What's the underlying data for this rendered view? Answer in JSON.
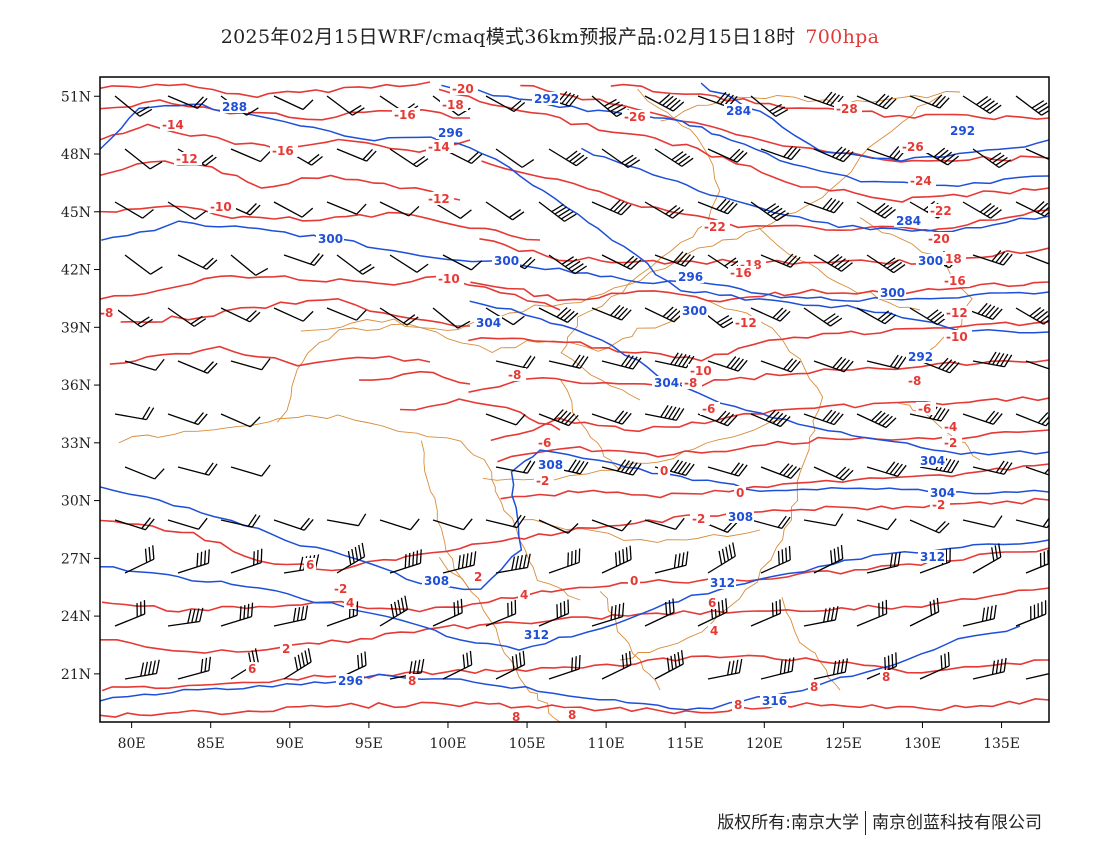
{
  "title": {
    "main": "2025年02月15日WRF/cmaq模式36km预报产品:02月15日18时",
    "level": "700hpa"
  },
  "colors": {
    "temperature": "#e53935",
    "geopotential": "#1e4fd8",
    "border": "#d98c3a",
    "wind": "#000000",
    "frame": "#000000"
  },
  "axes": {
    "lon_labels": [
      "80E",
      "85E",
      "90E",
      "95E",
      "100E",
      "105E",
      "110E",
      "115E",
      "120E",
      "125E",
      "130E",
      "135E"
    ],
    "lat_labels": [
      "51N",
      "48N",
      "45N",
      "42N",
      "39N",
      "36N",
      "33N",
      "30N",
      "27N",
      "24N",
      "21N"
    ]
  },
  "footer": {
    "left": "版权所有:南京大学",
    "right": "南京创蓝科技有限公司"
  },
  "temperature_labels": [
    "-20",
    "-18",
    "-14",
    "-16",
    "-16",
    "-14",
    "-12",
    "-12",
    "-10",
    "-10",
    "-8",
    "-26",
    "-28",
    "-26",
    "-24",
    "-22",
    "-22",
    "-20",
    "-18",
    "-18",
    "-16",
    "-16",
    "-12",
    "-12",
    "-10",
    "-10",
    "-8",
    "-8",
    "-8",
    "-6",
    "-6",
    "-6",
    "-4",
    "-2",
    "-2",
    "0",
    "-2",
    "-2",
    "0",
    "-2",
    "0",
    "4",
    "2",
    "4",
    "6",
    "2",
    "4",
    "6",
    "6",
    "8",
    "8",
    "8",
    "8",
    "8",
    "8"
  ],
  "height_labels": [
    "288",
    "292",
    "296",
    "300",
    "300",
    "284",
    "296",
    "284",
    "300",
    "304",
    "300",
    "304",
    "308",
    "308",
    "308",
    "312",
    "312",
    "304",
    "304",
    "312",
    "316",
    "292",
    "300",
    "292",
    "296"
  ]
}
